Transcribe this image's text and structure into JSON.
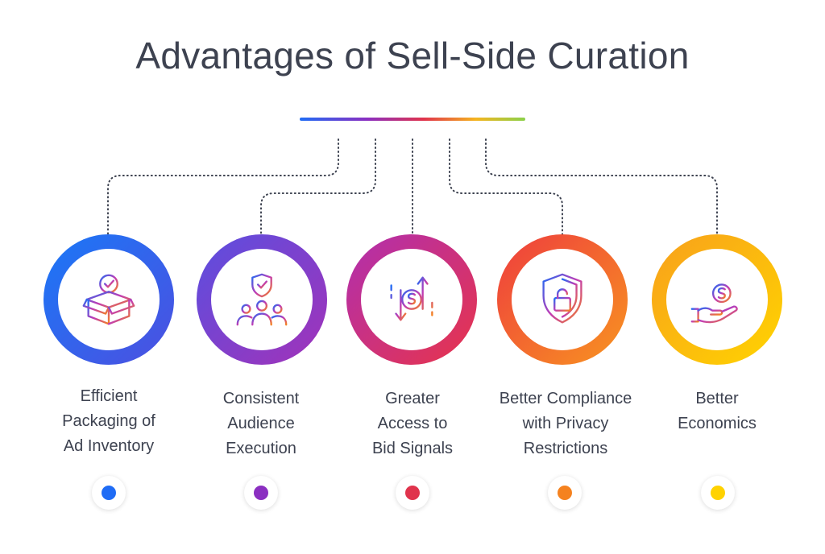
{
  "title": "Advantages of Sell-Side Curation",
  "colors": {
    "blue": "#1f6cf5",
    "purple": "#8b2fc1",
    "red": "#e0334c",
    "orange": "#f5821f",
    "yellow": "#ffd200",
    "text": "#3d4250"
  },
  "items": [
    {
      "icon": "box-check-icon",
      "lines": [
        "Efficient",
        "Packaging of",
        "Ad Inventory"
      ],
      "dot_color": "#1f6cf5"
    },
    {
      "icon": "audience-shield-icon",
      "lines": [
        "Consistent",
        "Audience",
        "Execution"
      ],
      "dot_color": "#8b2fc1"
    },
    {
      "icon": "dollar-arrows-icon",
      "lines": [
        "Greater",
        "Access to",
        "Bid Signals"
      ],
      "dot_color": "#e0334c"
    },
    {
      "icon": "shield-lock-icon",
      "lines": [
        "Better Compliance",
        "with Privacy",
        "Restrictions"
      ],
      "dot_color": "#f5821f"
    },
    {
      "icon": "hand-coin-icon",
      "lines": [
        "Better",
        "Economics"
      ],
      "dot_color": "#ffd200"
    }
  ]
}
